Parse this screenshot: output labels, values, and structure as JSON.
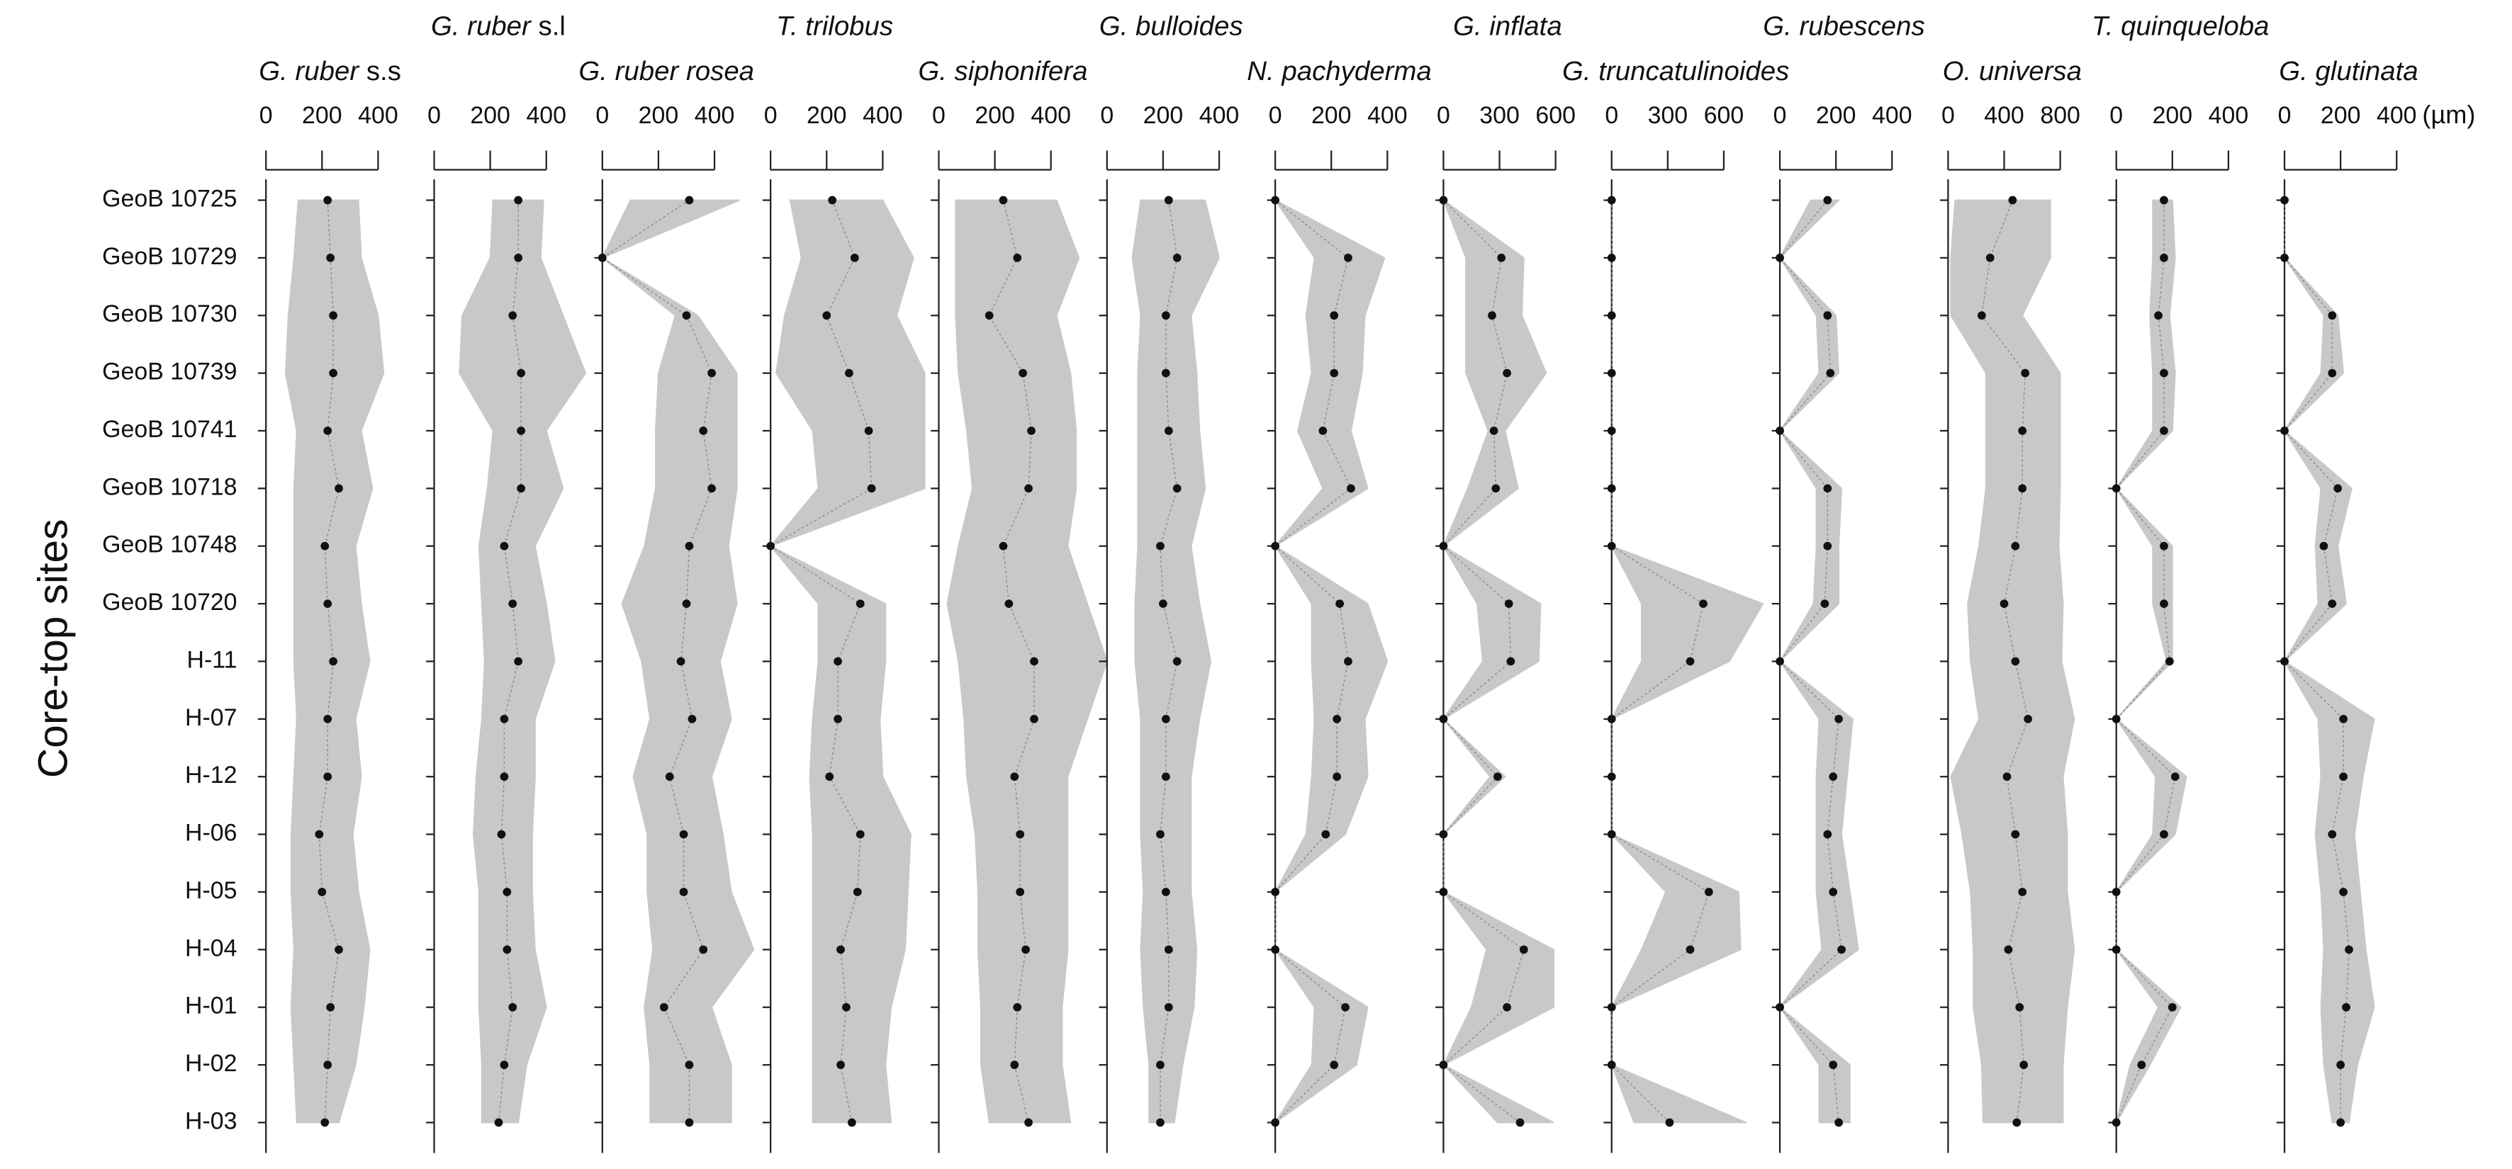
{
  "chart_data": {
    "type": "range-profile",
    "y_label": "Core-top sites",
    "x_unit": "(µm)",
    "range_color": "#c8c8c8",
    "mean_color": "#111111",
    "categories": [
      "GeoB 10725",
      "GeoB 10729",
      "GeoB 10730",
      "GeoB 10739",
      "GeoB 10741",
      "GeoB 10718",
      "GeoB 10748",
      "GeoB 10720",
      "H-11",
      "H-07",
      "H-12",
      "H-06",
      "H-05",
      "H-04",
      "H-01",
      "H-02",
      "H-03"
    ],
    "series": [
      {
        "name": "G. ruber",
        "name_suffix": "s.s",
        "xlim": [
          0,
          600
        ],
        "xticks": [
          0,
          200,
          400
        ],
        "values": [
          220,
          230,
          240,
          240,
          220,
          260,
          210,
          220,
          240,
          220,
          220,
          190,
          200,
          260,
          230,
          220,
          210
        ],
        "min": [
          115,
          100,
          80,
          70,
          110,
          100,
          100,
          100,
          100,
          110,
          100,
          90,
          90,
          100,
          90,
          100,
          110
        ],
        "max": [
          330,
          340,
          400,
          420,
          340,
          380,
          320,
          340,
          370,
          320,
          340,
          310,
          330,
          370,
          350,
          320,
          260
        ]
      },
      {
        "name": "G. ruber",
        "name_suffix": "s.l",
        "xlim": [
          0,
          600
        ],
        "xticks": [
          0,
          200,
          400
        ],
        "values": [
          300,
          300,
          280,
          310,
          310,
          310,
          250,
          280,
          300,
          250,
          250,
          240,
          260,
          260,
          280,
          250,
          230
        ],
        "min": [
          210,
          200,
          100,
          90,
          210,
          190,
          160,
          170,
          180,
          170,
          150,
          140,
          160,
          160,
          160,
          170,
          170
        ],
        "max": [
          390,
          380,
          460,
          540,
          400,
          460,
          360,
          400,
          430,
          360,
          360,
          350,
          350,
          360,
          400,
          330,
          300
        ]
      },
      {
        "name": "G. ruber rosea",
        "xlim": [
          0,
          600
        ],
        "xticks": [
          0,
          200,
          400
        ],
        "values": [
          310,
          0,
          300,
          390,
          360,
          390,
          310,
          300,
          280,
          320,
          240,
          290,
          290,
          360,
          220,
          310,
          310
        ],
        "min": [
          100,
          0,
          260,
          200,
          190,
          190,
          150,
          70,
          140,
          170,
          110,
          160,
          160,
          180,
          150,
          170,
          170
        ],
        "max": [
          490,
          0,
          340,
          480,
          480,
          480,
          450,
          480,
          420,
          460,
          390,
          430,
          460,
          540,
          390,
          460,
          460
        ]
      },
      {
        "name": "T. trilobus",
        "xlim": [
          0,
          600
        ],
        "xticks": [
          0,
          200,
          400
        ],
        "values": [
          220,
          300,
          200,
          280,
          350,
          360,
          0,
          320,
          240,
          240,
          210,
          320,
          310,
          250,
          270,
          250,
          290
        ],
        "min": [
          70,
          110,
          50,
          20,
          150,
          170,
          0,
          170,
          170,
          150,
          140,
          150,
          150,
          150,
          150,
          150,
          150
        ],
        "max": [
          400,
          510,
          450,
          550,
          550,
          550,
          0,
          410,
          410,
          390,
          400,
          500,
          490,
          480,
          430,
          410,
          430
        ]
      },
      {
        "name": "G. siphonifera",
        "xlim": [
          0,
          600
        ],
        "xticks": [
          0,
          200,
          400
        ],
        "values": [
          230,
          280,
          180,
          300,
          330,
          320,
          230,
          250,
          340,
          340,
          270,
          290,
          290,
          310,
          280,
          270,
          320
        ],
        "min": [
          60,
          60,
          60,
          70,
          100,
          120,
          70,
          30,
          70,
          90,
          100,
          130,
          140,
          140,
          150,
          150,
          180
        ],
        "max": [
          420,
          500,
          420,
          470,
          490,
          490,
          460,
          530,
          600,
          530,
          460,
          460,
          460,
          460,
          440,
          440,
          470
        ]
      },
      {
        "name": "G. bulloides",
        "xlim": [
          0,
          600
        ],
        "xticks": [
          0,
          200,
          400
        ],
        "values": [
          220,
          250,
          210,
          210,
          220,
          250,
          190,
          200,
          250,
          210,
          210,
          190,
          210,
          220,
          220,
          190,
          190
        ],
        "min": [
          120,
          90,
          120,
          110,
          110,
          110,
          110,
          100,
          100,
          120,
          120,
          120,
          130,
          120,
          130,
          150,
          150
        ],
        "max": [
          350,
          400,
          300,
          320,
          330,
          350,
          300,
          330,
          370,
          330,
          300,
          300,
          300,
          320,
          310,
          270,
          240
        ]
      },
      {
        "name": "N. pachyderma",
        "xlim": [
          0,
          600
        ],
        "xticks": [
          0,
          200,
          400
        ],
        "values": [
          0,
          260,
          210,
          210,
          170,
          270,
          0,
          230,
          260,
          220,
          220,
          180,
          0,
          0,
          250,
          210,
          0
        ],
        "min": [
          0,
          140,
          110,
          130,
          80,
          170,
          0,
          130,
          130,
          140,
          130,
          110,
          0,
          0,
          140,
          130,
          0
        ],
        "max": [
          0,
          390,
          320,
          310,
          270,
          330,
          0,
          330,
          400,
          320,
          330,
          250,
          0,
          0,
          330,
          290,
          0
        ]
      },
      {
        "name": "G. inflata",
        "xlim": [
          0,
          900
        ],
        "xticks": [
          0,
          300,
          600
        ],
        "values": [
          0,
          310,
          260,
          340,
          270,
          280,
          0,
          350,
          360,
          0,
          290,
          0,
          0,
          430,
          340,
          0,
          410
        ],
        "min": [
          0,
          120,
          120,
          120,
          240,
          130,
          0,
          180,
          210,
          0,
          250,
          0,
          0,
          230,
          150,
          0,
          290
        ],
        "max": [
          0,
          430,
          420,
          550,
          330,
          400,
          0,
          520,
          510,
          0,
          330,
          0,
          0,
          590,
          590,
          0,
          590
        ]
      },
      {
        "name": "G. truncatulinoides",
        "xlim": [
          0,
          900
        ],
        "xticks": [
          0,
          300,
          600
        ],
        "values": [
          0,
          0,
          0,
          0,
          0,
          0,
          0,
          490,
          420,
          0,
          0,
          0,
          520,
          420,
          0,
          0,
          310
        ],
        "min": [
          0,
          0,
          0,
          0,
          0,
          0,
          0,
          160,
          160,
          0,
          0,
          0,
          290,
          160,
          0,
          0,
          120
        ],
        "max": [
          0,
          0,
          0,
          0,
          0,
          0,
          0,
          810,
          630,
          0,
          0,
          0,
          680,
          690,
          0,
          0,
          720
        ]
      },
      {
        "name": "G. rubescens",
        "xlim": [
          0,
          600
        ],
        "xticks": [
          0,
          200,
          400
        ],
        "values": [
          170,
          0,
          170,
          180,
          0,
          170,
          170,
          160,
          0,
          210,
          190,
          170,
          190,
          220,
          0,
          190,
          210
        ],
        "min": [
          110,
          0,
          130,
          140,
          0,
          130,
          130,
          120,
          0,
          140,
          130,
          130,
          130,
          150,
          0,
          140,
          140
        ],
        "max": [
          210,
          0,
          200,
          210,
          0,
          220,
          210,
          210,
          0,
          260,
          240,
          220,
          250,
          280,
          0,
          250,
          250
        ]
      },
      {
        "name": "O. universa",
        "xlim": [
          0,
          1200
        ],
        "xticks": [
          0,
          400,
          800
        ],
        "values": [
          460,
          300,
          240,
          550,
          530,
          530,
          480,
          400,
          480,
          570,
          420,
          480,
          530,
          430,
          510,
          540,
          490
        ],
        "min": [
          50,
          20,
          20,
          270,
          270,
          270,
          220,
          140,
          160,
          220,
          20,
          100,
          160,
          180,
          180,
          240,
          250
        ],
        "max": [
          730,
          730,
          530,
          800,
          800,
          800,
          790,
          820,
          810,
          900,
          820,
          850,
          850,
          900,
          850,
          820,
          820
        ]
      },
      {
        "name": "T. quinqueloba",
        "xlim": [
          0,
          600
        ],
        "xticks": [
          0,
          200,
          400
        ],
        "values": [
          170,
          170,
          150,
          170,
          170,
          0,
          170,
          170,
          190,
          0,
          210,
          170,
          0,
          0,
          200,
          90,
          0
        ],
        "min": [
          130,
          130,
          120,
          130,
          130,
          0,
          130,
          130,
          180,
          0,
          140,
          130,
          0,
          0,
          150,
          50,
          0
        ],
        "max": [
          200,
          210,
          190,
          210,
          200,
          0,
          200,
          200,
          200,
          0,
          250,
          210,
          0,
          0,
          230,
          120,
          0
        ]
      },
      {
        "name": "G. glutinata",
        "xlim": [
          0,
          600
        ],
        "xticks": [
          0,
          200,
          400
        ],
        "values": [
          0,
          0,
          170,
          170,
          0,
          190,
          140,
          170,
          0,
          210,
          210,
          170,
          210,
          230,
          220,
          200,
          200
        ],
        "min": [
          0,
          0,
          140,
          130,
          0,
          130,
          110,
          120,
          0,
          120,
          130,
          110,
          130,
          140,
          130,
          140,
          170
        ],
        "max": [
          0,
          0,
          190,
          210,
          0,
          240,
          190,
          220,
          0,
          320,
          280,
          250,
          270,
          290,
          320,
          260,
          230
        ]
      }
    ]
  }
}
